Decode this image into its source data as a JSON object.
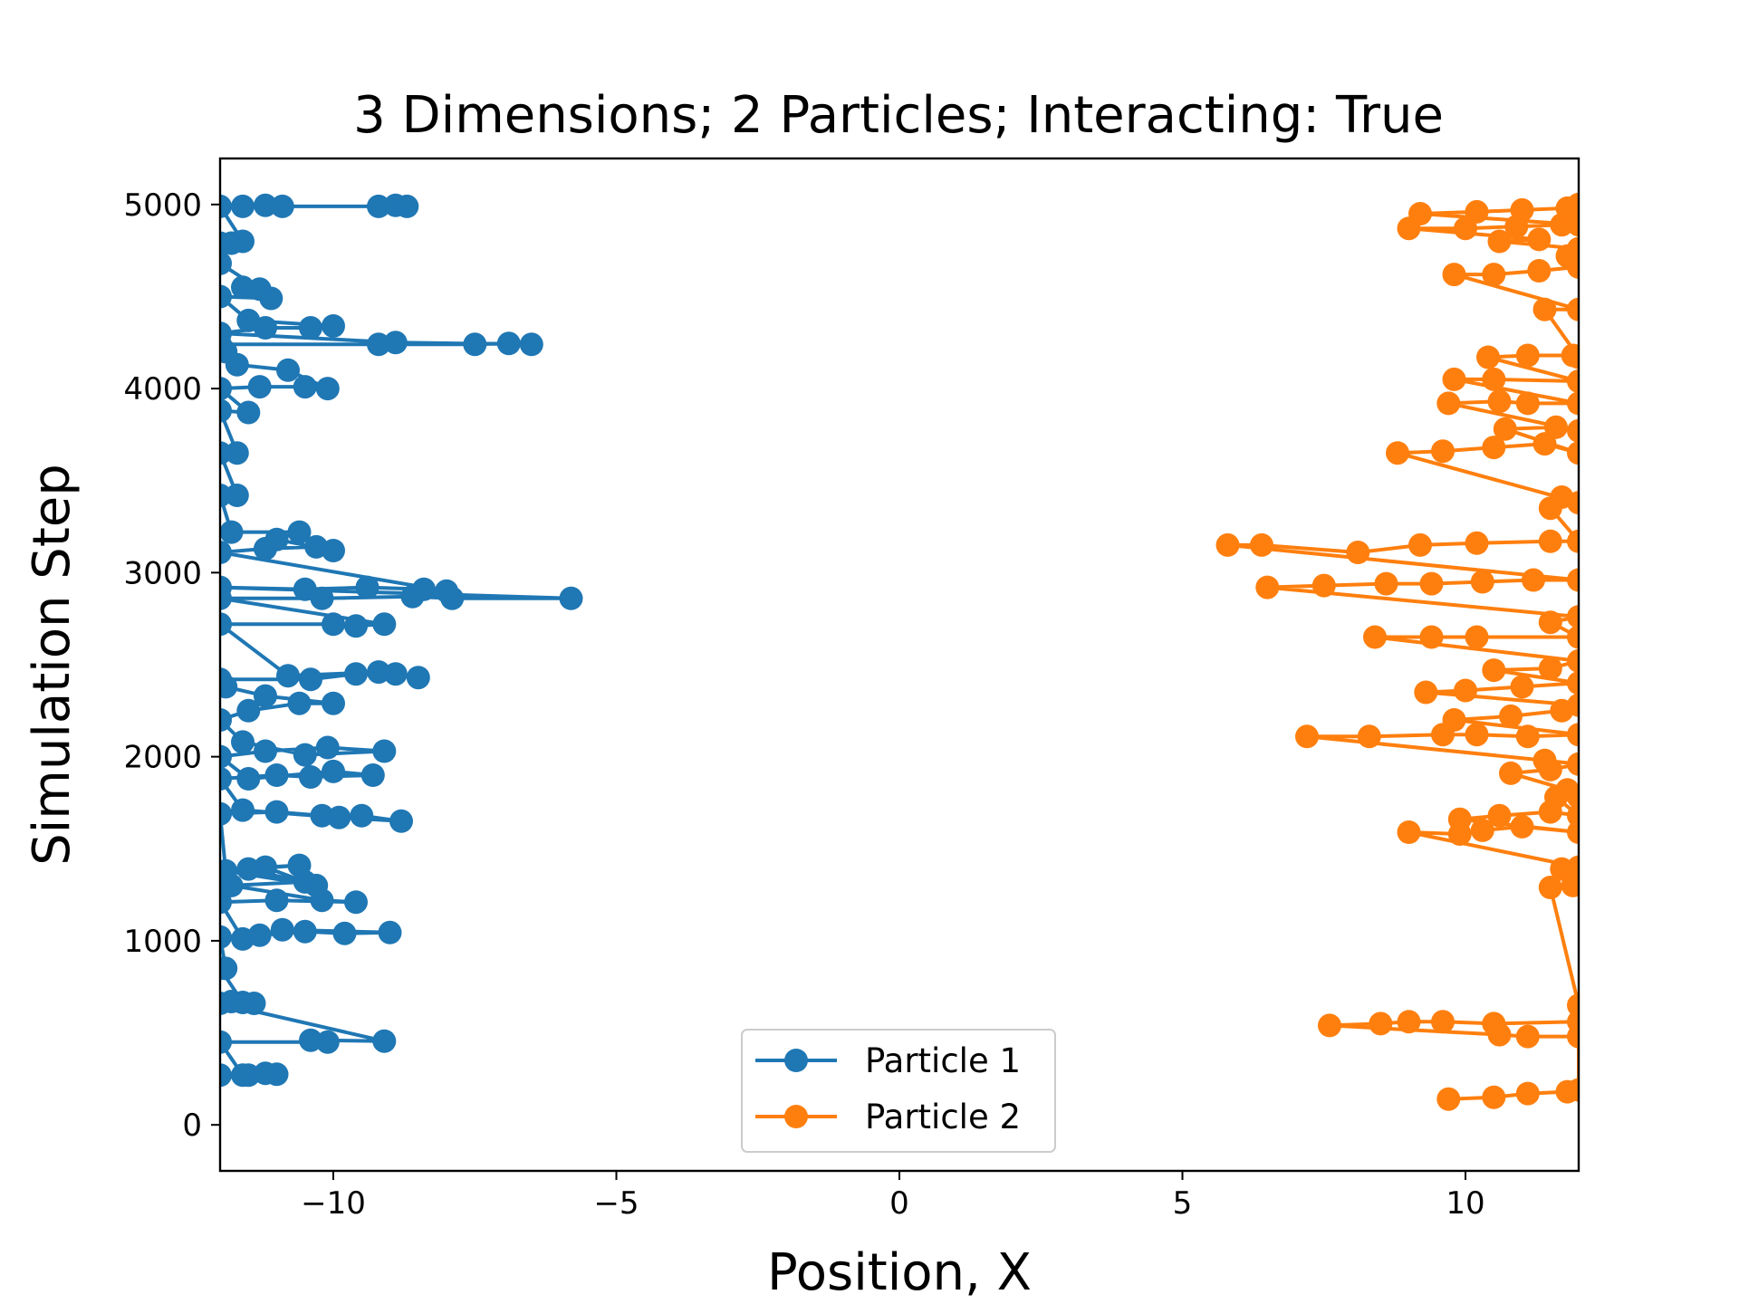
{
  "chart_data": {
    "type": "line",
    "title": "3 Dimensions; 2 Particles; Interacting: True",
    "xlabel": "Position, X",
    "ylabel": "Simulation Step",
    "xlim": [
      -12,
      12
    ],
    "ylim": [
      -250,
      5250
    ],
    "xticks": [
      -10,
      -5,
      0,
      5,
      10
    ],
    "xtick_labels": [
      "−10",
      "−5",
      "0",
      "5",
      "10"
    ],
    "yticks": [
      0,
      1000,
      2000,
      3000,
      4000,
      5000
    ],
    "ytick_labels": [
      "0",
      "1000",
      "2000",
      "3000",
      "4000",
      "5000"
    ],
    "grid": false,
    "legend_position": "lower center",
    "series": [
      {
        "name": "Particle 1",
        "color": "#1f77b4",
        "marker": "circle",
        "points": [
          [
            -12.0,
            270
          ],
          [
            -11.5,
            270
          ],
          [
            -11.0,
            275
          ],
          [
            -11.2,
            280
          ],
          [
            -11.6,
            270
          ],
          [
            -12.0,
            450
          ],
          [
            -10.1,
            450
          ],
          [
            -10.4,
            460
          ],
          [
            -9.1,
            455
          ],
          [
            -12.0,
            660
          ],
          [
            -11.4,
            660
          ],
          [
            -11.8,
            670
          ],
          [
            -11.6,
            665
          ],
          [
            -12.0,
            850
          ],
          [
            -11.9,
            850
          ],
          [
            -12.0,
            1020
          ],
          [
            -11.3,
            1030
          ],
          [
            -10.5,
            1050
          ],
          [
            -9.8,
            1040
          ],
          [
            -9.0,
            1045
          ],
          [
            -10.9,
            1060
          ],
          [
            -11.6,
            1010
          ],
          [
            -12.0,
            1210
          ],
          [
            -11.0,
            1220
          ],
          [
            -9.6,
            1210
          ],
          [
            -10.2,
            1220
          ],
          [
            -11.8,
            1300
          ],
          [
            -10.5,
            1320
          ],
          [
            -11.2,
            1400
          ],
          [
            -10.6,
            1410
          ],
          [
            -11.5,
            1390
          ],
          [
            -10.3,
            1300
          ],
          [
            -11.9,
            1380
          ],
          [
            -12.0,
            1690
          ],
          [
            -11.0,
            1700
          ],
          [
            -10.2,
            1680
          ],
          [
            -9.5,
            1680
          ],
          [
            -8.8,
            1650
          ],
          [
            -9.9,
            1670
          ],
          [
            -11.6,
            1710
          ],
          [
            -12.0,
            1880
          ],
          [
            -11.0,
            1900
          ],
          [
            -10.4,
            1890
          ],
          [
            -9.3,
            1900
          ],
          [
            -10.0,
            1920
          ],
          [
            -11.5,
            1880
          ],
          [
            -12.0,
            2000
          ],
          [
            -11.2,
            2030
          ],
          [
            -10.1,
            2050
          ],
          [
            -9.1,
            2030
          ],
          [
            -10.5,
            2010
          ],
          [
            -11.6,
            2080
          ],
          [
            -12.0,
            2200
          ],
          [
            -11.5,
            2250
          ],
          [
            -10.6,
            2290
          ],
          [
            -10.0,
            2290
          ],
          [
            -11.2,
            2330
          ],
          [
            -11.9,
            2380
          ],
          [
            -12.0,
            2420
          ],
          [
            -10.4,
            2420
          ],
          [
            -9.6,
            2450
          ],
          [
            -8.9,
            2450
          ],
          [
            -8.5,
            2430
          ],
          [
            -9.2,
            2460
          ],
          [
            -10.8,
            2440
          ],
          [
            -12.0,
            2720
          ],
          [
            -10.0,
            2720
          ],
          [
            -9.6,
            2710
          ],
          [
            -9.1,
            2720
          ],
          [
            -12.0,
            2860
          ],
          [
            -10.2,
            2860
          ],
          [
            -8.6,
            2870
          ],
          [
            -7.9,
            2860
          ],
          [
            -5.8,
            2860
          ],
          [
            -12.0,
            2920
          ],
          [
            -10.5,
            2910
          ],
          [
            -9.4,
            2920
          ],
          [
            -8.4,
            2910
          ],
          [
            -8.0,
            2900
          ],
          [
            -12.0,
            3110
          ],
          [
            -11.2,
            3130
          ],
          [
            -10.3,
            3140
          ],
          [
            -10.0,
            3120
          ],
          [
            -11.0,
            3180
          ],
          [
            -10.6,
            3220
          ],
          [
            -11.8,
            3220
          ],
          [
            -12.0,
            3420
          ],
          [
            -11.7,
            3420
          ],
          [
            -12.0,
            3650
          ],
          [
            -11.7,
            3650
          ],
          [
            -12.0,
            3880
          ],
          [
            -11.5,
            3870
          ],
          [
            -12.0,
            4000
          ],
          [
            -11.3,
            4010
          ],
          [
            -10.5,
            4010
          ],
          [
            -10.1,
            4000
          ],
          [
            -10.8,
            4100
          ],
          [
            -11.7,
            4130
          ],
          [
            -11.9,
            4200
          ],
          [
            -12.0,
            4240
          ],
          [
            -9.2,
            4240
          ],
          [
            -7.5,
            4240
          ],
          [
            -6.9,
            4245
          ],
          [
            -6.5,
            4240
          ],
          [
            -8.9,
            4250
          ],
          [
            -12.0,
            4300
          ],
          [
            -11.2,
            4330
          ],
          [
            -10.4,
            4330
          ],
          [
            -10.0,
            4340
          ],
          [
            -11.5,
            4370
          ],
          [
            -12.0,
            4500
          ],
          [
            -11.1,
            4490
          ],
          [
            -11.6,
            4550
          ],
          [
            -11.3,
            4540
          ],
          [
            -12.0,
            4680
          ],
          [
            -12.0,
            4790
          ],
          [
            -11.8,
            4790
          ],
          [
            -11.6,
            4800
          ],
          [
            -12.0,
            4990
          ],
          [
            -11.6,
            4990
          ],
          [
            -11.2,
            4995
          ],
          [
            -10.9,
            4990
          ],
          [
            -9.2,
            4990
          ],
          [
            -8.9,
            4995
          ],
          [
            -8.7,
            4990
          ]
        ]
      },
      {
        "name": "Particle 2",
        "color": "#ff7f0e",
        "marker": "circle",
        "points": [
          [
            9.7,
            140
          ],
          [
            10.5,
            150
          ],
          [
            11.1,
            170
          ],
          [
            11.8,
            180
          ],
          [
            12.0,
            190
          ],
          [
            12.0,
            480
          ],
          [
            11.1,
            480
          ],
          [
            10.6,
            490
          ],
          [
            7.6,
            540
          ],
          [
            8.5,
            550
          ],
          [
            9.0,
            560
          ],
          [
            9.6,
            560
          ],
          [
            10.5,
            550
          ],
          [
            12.0,
            560
          ],
          [
            12.0,
            650
          ],
          [
            11.5,
            1290
          ],
          [
            11.9,
            1300
          ],
          [
            11.7,
            1390
          ],
          [
            12.0,
            1400
          ],
          [
            9.0,
            1590
          ],
          [
            9.9,
            1580
          ],
          [
            10.3,
            1600
          ],
          [
            11.0,
            1620
          ],
          [
            12.0,
            1590
          ],
          [
            9.9,
            1660
          ],
          [
            10.6,
            1680
          ],
          [
            11.5,
            1700
          ],
          [
            12.0,
            1680
          ],
          [
            11.6,
            1780
          ],
          [
            12.0,
            1780
          ],
          [
            11.8,
            1820
          ],
          [
            10.8,
            1910
          ],
          [
            11.5,
            1930
          ],
          [
            12.0,
            1960
          ],
          [
            11.4,
            1980
          ],
          [
            7.2,
            2110
          ],
          [
            8.3,
            2110
          ],
          [
            9.6,
            2120
          ],
          [
            10.2,
            2120
          ],
          [
            11.1,
            2110
          ],
          [
            12.0,
            2120
          ],
          [
            9.8,
            2200
          ],
          [
            10.8,
            2220
          ],
          [
            11.7,
            2250
          ],
          [
            12.0,
            2280
          ],
          [
            9.3,
            2350
          ],
          [
            10.0,
            2360
          ],
          [
            11.0,
            2380
          ],
          [
            12.0,
            2400
          ],
          [
            10.5,
            2470
          ],
          [
            11.5,
            2480
          ],
          [
            12.0,
            2520
          ],
          [
            8.4,
            2650
          ],
          [
            9.4,
            2650
          ],
          [
            10.2,
            2650
          ],
          [
            12.0,
            2650
          ],
          [
            11.5,
            2730
          ],
          [
            12.0,
            2760
          ],
          [
            6.5,
            2920
          ],
          [
            7.5,
            2930
          ],
          [
            8.6,
            2940
          ],
          [
            9.4,
            2940
          ],
          [
            10.3,
            2950
          ],
          [
            11.2,
            2960
          ],
          [
            12.0,
            2960
          ],
          [
            5.8,
            3150
          ],
          [
            6.4,
            3150
          ],
          [
            8.1,
            3110
          ],
          [
            9.2,
            3150
          ],
          [
            10.2,
            3160
          ],
          [
            11.5,
            3170
          ],
          [
            12.0,
            3170
          ],
          [
            11.5,
            3350
          ],
          [
            11.7,
            3410
          ],
          [
            12.0,
            3380
          ],
          [
            8.8,
            3650
          ],
          [
            9.6,
            3660
          ],
          [
            10.5,
            3680
          ],
          [
            11.4,
            3700
          ],
          [
            12.0,
            3650
          ],
          [
            10.7,
            3780
          ],
          [
            11.6,
            3790
          ],
          [
            12.0,
            3770
          ],
          [
            9.7,
            3920
          ],
          [
            10.6,
            3930
          ],
          [
            11.1,
            3920
          ],
          [
            12.0,
            3920
          ],
          [
            9.8,
            4050
          ],
          [
            10.5,
            4050
          ],
          [
            12.0,
            4040
          ],
          [
            10.4,
            4170
          ],
          [
            11.1,
            4180
          ],
          [
            11.9,
            4180
          ],
          [
            12.0,
            4170
          ],
          [
            11.4,
            4430
          ],
          [
            12.0,
            4430
          ],
          [
            9.8,
            4620
          ],
          [
            10.5,
            4620
          ],
          [
            11.3,
            4640
          ],
          [
            12.0,
            4660
          ],
          [
            11.8,
            4720
          ],
          [
            12.0,
            4760
          ],
          [
            10.6,
            4800
          ],
          [
            11.3,
            4810
          ],
          [
            9.0,
            4870
          ],
          [
            10.0,
            4870
          ],
          [
            10.9,
            4880
          ],
          [
            11.7,
            4890
          ],
          [
            12.0,
            4890
          ],
          [
            9.2,
            4950
          ],
          [
            10.2,
            4960
          ],
          [
            11.0,
            4970
          ],
          [
            11.8,
            4980
          ],
          [
            12.0,
            5000
          ]
        ]
      }
    ]
  }
}
